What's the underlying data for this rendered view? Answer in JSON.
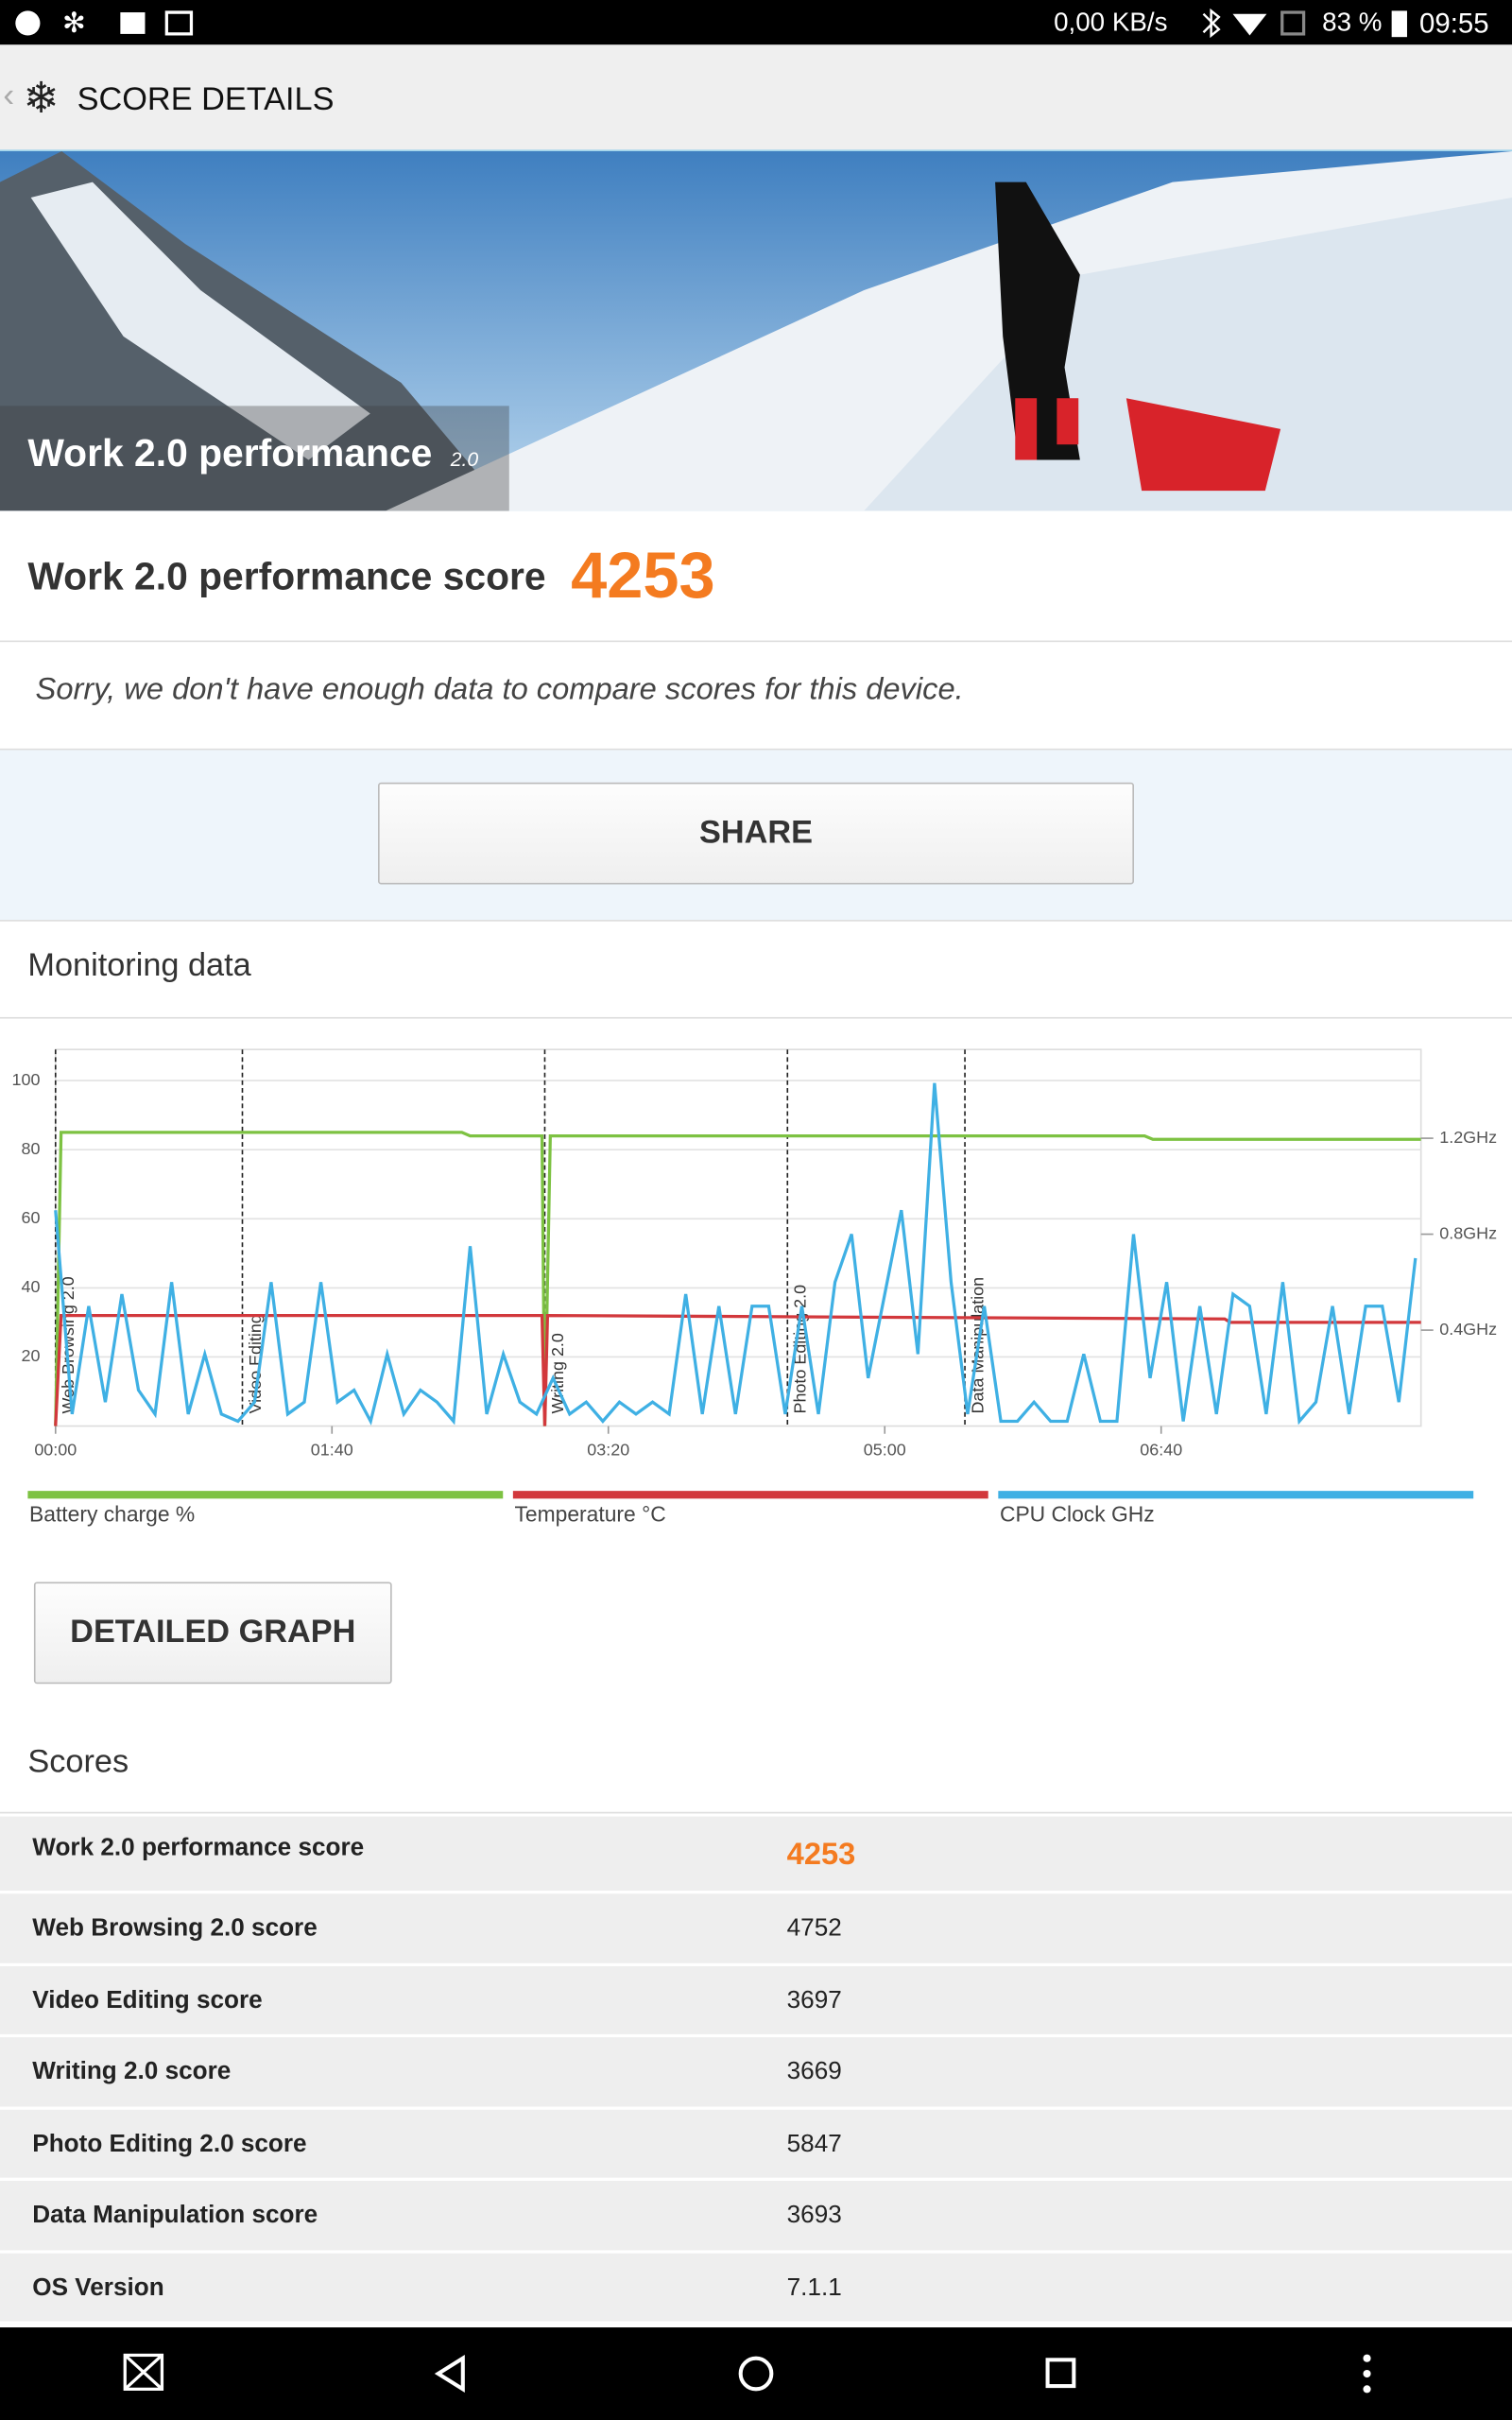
{
  "status_bar": {
    "speed": "0,00 KB/s",
    "battery": "83 %",
    "time": "09:55"
  },
  "toolbar": {
    "title": "SCORE DETAILS"
  },
  "banner": {
    "title": "Work 2.0 performance",
    "version": "2.0"
  },
  "score": {
    "label": "Work 2.0 performance score",
    "value": "4253"
  },
  "message": "Sorry, we don't have enough data to compare scores for this device.",
  "share_button": "SHARE",
  "monitoring": {
    "title": "Monitoring data",
    "detailed_button": "DETAILED GRAPH"
  },
  "chart_data": {
    "type": "line",
    "xlim": [
      0,
      494
    ],
    "xticks": [
      {
        "value": 0,
        "label": "00:00"
      },
      {
        "value": 100,
        "label": "01:40"
      },
      {
        "value": 200,
        "label": "03:20"
      },
      {
        "value": 300,
        "label": "05:00"
      },
      {
        "value": 400,
        "label": "06:40"
      }
    ],
    "ylim": [
      0,
      109
    ],
    "yticks": [
      20,
      40,
      60,
      80,
      100
    ],
    "y2lim": [
      0,
      1.57
    ],
    "y2ticks": [
      {
        "value": 0.4,
        "label": "0.4GHz"
      },
      {
        "value": 0.8,
        "label": "0.8GHz"
      },
      {
        "value": 1.2,
        "label": "1.2GHz"
      }
    ],
    "grid": true,
    "sections": [
      {
        "name": "Web Browsing 2.0",
        "x": 0
      },
      {
        "name": "Video Editing",
        "x": 67.6
      },
      {
        "name": "Writing 2.0",
        "x": 177
      },
      {
        "name": "Photo Editing 2.0",
        "x": 264.8
      },
      {
        "name": "Data Manipulation",
        "x": 329
      }
    ],
    "series": [
      {
        "name": "Battery charge %",
        "color": "#7dc242",
        "x": [
          0,
          2,
          147,
          150,
          176,
          177,
          179,
          394,
          397,
          494
        ],
        "values": [
          0,
          85,
          85,
          84,
          84,
          0,
          84,
          84,
          83,
          83
        ]
      },
      {
        "name": "Temperature °C",
        "color": "#d2383c",
        "x": [
          0,
          2,
          176,
          177,
          178,
          423,
          425,
          494
        ],
        "values": [
          0,
          32,
          32,
          0,
          32,
          31,
          30,
          30
        ]
      },
      {
        "name": "CPU Clock GHz",
        "color": "#3fb0e4",
        "axis": "y2",
        "x": [
          0,
          6,
          12,
          18,
          24,
          30,
          36,
          42,
          48,
          54,
          60,
          66,
          72,
          78,
          84,
          90,
          96,
          102,
          108,
          114,
          120,
          126,
          132,
          138,
          144,
          150,
          156,
          162,
          168,
          174,
          180,
          186,
          192,
          198,
          204,
          210,
          216,
          222,
          228,
          234,
          240,
          246,
          252,
          258,
          264,
          270,
          276,
          282,
          288,
          294,
          300,
          306,
          312,
          318,
          324,
          330,
          336,
          342,
          348,
          354,
          360,
          366,
          372,
          378,
          384,
          390,
          396,
          402,
          408,
          414,
          420,
          426,
          432,
          438,
          444,
          450,
          456,
          462,
          468,
          474,
          480,
          486,
          492
        ],
        "values": [
          0.9,
          0.05,
          0.5,
          0.1,
          0.55,
          0.15,
          0.05,
          0.6,
          0.05,
          0.3,
          0.05,
          0.02,
          0.1,
          0.6,
          0.05,
          0.1,
          0.6,
          0.1,
          0.15,
          0.02,
          0.3,
          0.05,
          0.15,
          0.1,
          0.02,
          0.75,
          0.05,
          0.3,
          0.1,
          0.05,
          0.2,
          0.05,
          0.1,
          0.02,
          0.1,
          0.05,
          0.1,
          0.05,
          0.55,
          0.05,
          0.5,
          0.05,
          0.5,
          0.5,
          0.05,
          0.5,
          0.05,
          0.6,
          0.8,
          0.2,
          0.55,
          0.9,
          0.3,
          1.43,
          0.6,
          0.05,
          0.5,
          0.02,
          0.02,
          0.1,
          0.02,
          0.02,
          0.3,
          0.02,
          0.02,
          0.8,
          0.2,
          0.6,
          0.02,
          0.5,
          0.05,
          0.55,
          0.5,
          0.05,
          0.6,
          0.02,
          0.1,
          0.5,
          0.05,
          0.5,
          0.5,
          0.1,
          0.7
        ]
      }
    ]
  },
  "scores": {
    "title": "Scores",
    "rows": [
      [
        "Work 2.0 performance score",
        "4253"
      ],
      [
        "Web Browsing 2.0 score",
        "4752"
      ],
      [
        "Video Editing score",
        "3697"
      ],
      [
        "Writing 2.0 score",
        "3669"
      ],
      [
        "Photo Editing 2.0 score",
        "5847"
      ],
      [
        "Data Manipulation score",
        "3693"
      ],
      [
        "OS Version",
        "7.1.1"
      ]
    ]
  }
}
